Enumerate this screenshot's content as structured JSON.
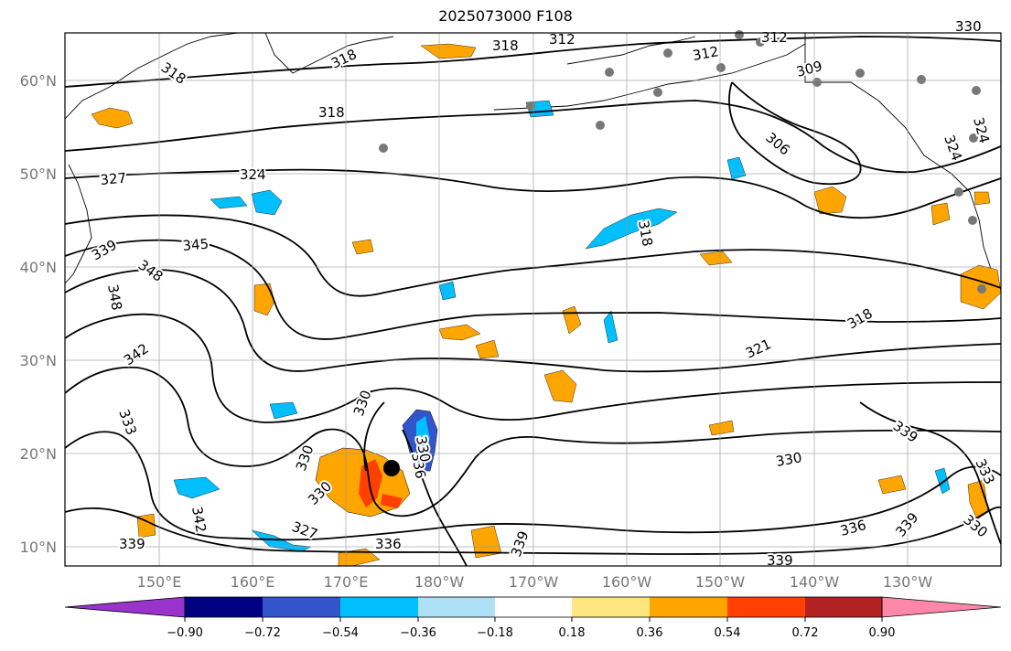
{
  "title": "2025073000 F108",
  "lat_labels": [
    "60°N",
    "50°N",
    "40°N",
    "30°N",
    "20°N",
    "10°N"
  ],
  "lon_labels": [
    "150°E",
    "160°E",
    "170°E",
    "180°W",
    "170°W",
    "160°W",
    "150°W",
    "140°W",
    "130°W"
  ],
  "contour_labels": [
    "318",
    "318",
    "318",
    "318",
    "312",
    "312",
    "312",
    "309",
    "306",
    "324",
    "324",
    "327",
    "324",
    "339",
    "345",
    "348",
    "348",
    "318",
    "318",
    "342",
    "321",
    "333",
    "330",
    "330",
    "330",
    "336",
    "330",
    "330",
    "327",
    "342",
    "339",
    "336",
    "339",
    "339",
    "339",
    "336",
    "339",
    "330",
    "333",
    "330"
  ],
  "colorbar": {
    "tick_labels": [
      "−0.90",
      "−0.72",
      "−0.54",
      "−0.36",
      "−0.18",
      "0.18",
      "0.36",
      "0.54",
      "0.72",
      "0.90"
    ],
    "colors": [
      "#9933cc",
      "#000080",
      "#3355cc",
      "#00bfff",
      "#aee0f7",
      "#ffffff",
      "#ffe680",
      "#ffa500",
      "#ff4000",
      "#b22222",
      "#ff88aa"
    ]
  }
}
